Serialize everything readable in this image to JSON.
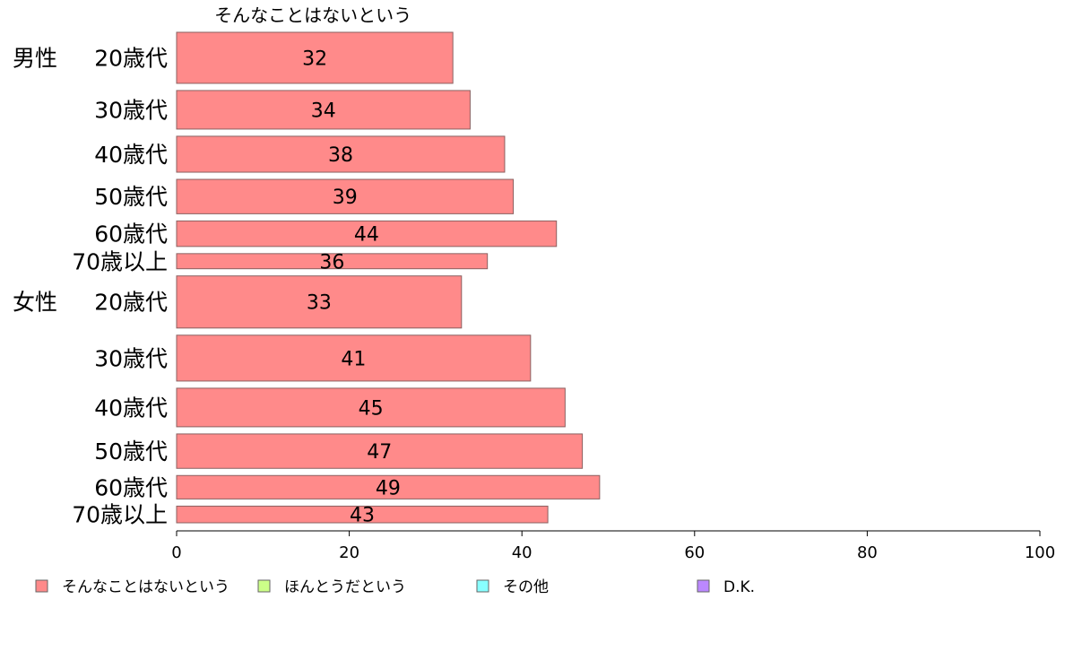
{
  "chart_data": {
    "type": "bar",
    "orientation": "horizontal",
    "series": [
      {
        "name": "そんなことはないという",
        "color": "#ff8a8a",
        "values": [
          32,
          34,
          38,
          39,
          44,
          36,
          33,
          41,
          45,
          47,
          49,
          43
        ]
      }
    ],
    "groups": [
      "男性",
      "女性"
    ],
    "categories": [
      "20歳代",
      "30歳代",
      "40歳代",
      "50歳代",
      "60歳代",
      "70歳以上",
      "20歳代",
      "30歳代",
      "40歳代",
      "50歳代",
      "60歳代",
      "70歳以上"
    ],
    "category_group": [
      0,
      0,
      0,
      0,
      0,
      0,
      1,
      1,
      1,
      1,
      1,
      1
    ],
    "bar_widths": [
      0.98,
      0.74,
      0.69,
      0.66,
      0.49,
      0.29,
      1.0,
      0.88,
      0.74,
      0.66,
      0.45,
      0.32
    ],
    "xlim": [
      0,
      100
    ],
    "xticks": [
      0,
      20,
      40,
      60,
      80,
      100
    ],
    "legend": {
      "placement": "bottom",
      "items": [
        {
          "label": "そんなことはないという",
          "color": "#ff8a8a"
        },
        {
          "label": "ほんとうだという",
          "color": "#ccff88"
        },
        {
          "label": "その他",
          "color": "#88ffff"
        },
        {
          "label": "D.K.",
          "color": "#bb88ff"
        }
      ]
    },
    "grid": false
  }
}
